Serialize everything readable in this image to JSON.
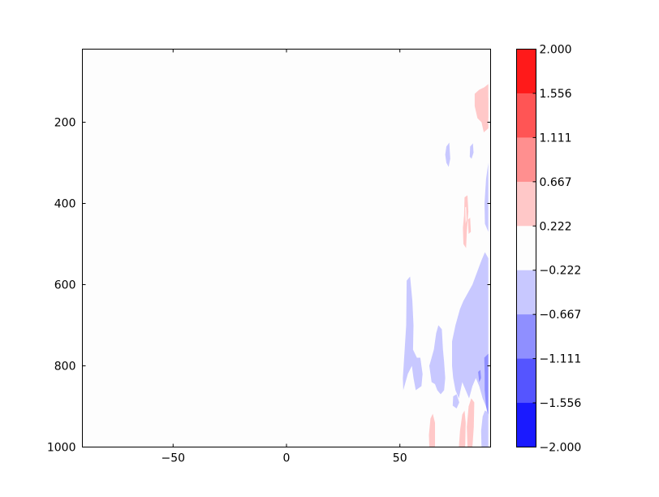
{
  "chart_data": {
    "type": "heatmap",
    "title": "",
    "xlabel": "",
    "ylabel": "",
    "xlim": [
      -90,
      90
    ],
    "ylim": [
      1000,
      20
    ],
    "y_inverted": true,
    "x_ticks": [
      {
        "value": -50,
        "label": "−50"
      },
      {
        "value": 0,
        "label": "0"
      },
      {
        "value": 50,
        "label": "50"
      }
    ],
    "y_ticks": [
      {
        "value": 200,
        "label": "200"
      },
      {
        "value": 400,
        "label": "400"
      },
      {
        "value": 600,
        "label": "600"
      },
      {
        "value": 800,
        "label": "800"
      },
      {
        "value": 1000,
        "label": "1000"
      }
    ],
    "grid": false,
    "colorbar": {
      "levels": [
        -2.0,
        -1.556,
        -1.111,
        -0.667,
        -0.222,
        0.222,
        0.667,
        1.111,
        1.556,
        2.0
      ],
      "tick_labels": [
        "2.000",
        "1.556",
        "1.111",
        "0.667",
        "0.222",
        "−0.222",
        "−0.667",
        "−1.111",
        "−1.556",
        "−2.000"
      ],
      "colors": [
        "#1a1aff",
        "#5555ff",
        "#8f8fff",
        "#c8c8ff",
        "#fdfdfd",
        "#ffc8c8",
        "#ff8f8f",
        "#ff5555",
        "#ff1a1a"
      ]
    },
    "regions": [
      {
        "level_index": 5,
        "points": [
          [
            87.2,
            114
          ],
          [
            89,
            106
          ],
          [
            89,
            215
          ],
          [
            87,
            225
          ],
          [
            86,
            200
          ],
          [
            84.2,
            190
          ],
          [
            83,
            160
          ],
          [
            83,
            130
          ],
          [
            85,
            120
          ]
        ]
      },
      {
        "level_index": 5,
        "points": [
          [
            89,
            140
          ],
          [
            89,
            190
          ],
          [
            87.2,
            170
          ],
          [
            87.5,
            150
          ]
        ]
      },
      {
        "level_index": 5,
        "points": [
          [
            78.5,
            385
          ],
          [
            79.8,
            380
          ],
          [
            80.2,
            420
          ],
          [
            79.5,
            470
          ],
          [
            79.2,
            510
          ],
          [
            78,
            500
          ],
          [
            77.8,
            460
          ],
          [
            78.3,
            430
          ]
        ]
      },
      {
        "level_index": 5,
        "points": [
          [
            80,
            440
          ],
          [
            81,
            435
          ],
          [
            81.3,
            470
          ],
          [
            80.3,
            475
          ]
        ]
      },
      {
        "level_index": 5,
        "points": [
          [
            63.5,
            930
          ],
          [
            64.5,
            918
          ],
          [
            65.5,
            940
          ],
          [
            65.5,
            1000
          ],
          [
            63,
            1000
          ],
          [
            62.8,
            970
          ]
        ]
      },
      {
        "level_index": 5,
        "points": [
          [
            77.5,
            920
          ],
          [
            78.5,
            910
          ],
          [
            79,
            940
          ],
          [
            78.8,
            1000
          ],
          [
            76,
            1000
          ],
          [
            76.5,
            960
          ]
        ]
      },
      {
        "level_index": 5,
        "points": [
          [
            80.3,
            900
          ],
          [
            81.5,
            880
          ],
          [
            82.8,
            890
          ],
          [
            82.6,
            950
          ],
          [
            82,
            1000
          ],
          [
            79.8,
            1000
          ],
          [
            79.5,
            950
          ]
        ]
      },
      {
        "level_index": 4,
        "points": [
          [
            78.8,
            410
          ],
          [
            79.2,
            408
          ],
          [
            79.4,
            440
          ],
          [
            79,
            450
          ]
        ]
      },
      {
        "level_index": 3,
        "points": [
          [
            70.5,
            260
          ],
          [
            71.8,
            250
          ],
          [
            72.2,
            290
          ],
          [
            71.5,
            310
          ],
          [
            70.5,
            300
          ],
          [
            70,
            280
          ]
        ]
      },
      {
        "level_index": 3,
        "points": [
          [
            81,
            260
          ],
          [
            82.2,
            252
          ],
          [
            82.5,
            275
          ],
          [
            81.6,
            290
          ],
          [
            80.8,
            285
          ]
        ]
      },
      {
        "level_index": 3,
        "points": [
          [
            89,
            300
          ],
          [
            89,
            470
          ],
          [
            87.5,
            450
          ],
          [
            87.3,
            400
          ],
          [
            88,
            340
          ]
        ]
      },
      {
        "level_index": 3,
        "points": [
          [
            53,
            590
          ],
          [
            54.5,
            580
          ],
          [
            55.5,
            640
          ],
          [
            56,
            700
          ],
          [
            55.8,
            760
          ],
          [
            57.5,
            780
          ],
          [
            59,
            780
          ],
          [
            60,
            820
          ],
          [
            59.5,
            850
          ],
          [
            57,
            860
          ],
          [
            56,
            830
          ],
          [
            55.3,
            800
          ],
          [
            53.5,
            820
          ],
          [
            52.5,
            840
          ],
          [
            51.5,
            860
          ],
          [
            51.3,
            830
          ],
          [
            52,
            770
          ],
          [
            52.8,
            700
          ]
        ]
      },
      {
        "level_index": 3,
        "points": [
          [
            63,
            800
          ],
          [
            64,
            780
          ],
          [
            65,
            760
          ],
          [
            66,
            720
          ],
          [
            67,
            700
          ],
          [
            68.5,
            710
          ],
          [
            69,
            760
          ],
          [
            69.5,
            790
          ],
          [
            70,
            830
          ],
          [
            69.5,
            860
          ],
          [
            68,
            870
          ],
          [
            66.5,
            860
          ],
          [
            65.5,
            845
          ],
          [
            64,
            840
          ]
        ]
      },
      {
        "level_index": 3,
        "points": [
          [
            73,
            740
          ],
          [
            74.5,
            700
          ],
          [
            76.5,
            660
          ],
          [
            78,
            640
          ],
          [
            80,
            620
          ],
          [
            82,
            600
          ],
          [
            84,
            570
          ],
          [
            86,
            540
          ],
          [
            87.5,
            520
          ],
          [
            89,
            535
          ],
          [
            89,
            930
          ],
          [
            88,
            900
          ],
          [
            86.5,
            880
          ],
          [
            85,
            850
          ],
          [
            83.5,
            830
          ],
          [
            82,
            850
          ],
          [
            80.5,
            880
          ],
          [
            79,
            860
          ],
          [
            77.5,
            840
          ],
          [
            76,
            880
          ],
          [
            74.5,
            860
          ],
          [
            73.5,
            830
          ],
          [
            73,
            800
          ]
        ]
      },
      {
        "level_index": 3,
        "points": [
          [
            73.5,
            875
          ],
          [
            75,
            870
          ],
          [
            76.2,
            890
          ],
          [
            75,
            905
          ],
          [
            73.3,
            898
          ]
        ]
      },
      {
        "level_index": 3,
        "points": [
          [
            86.5,
            925
          ],
          [
            87.5,
            910
          ],
          [
            89,
            915
          ],
          [
            89,
            1000
          ],
          [
            86,
            1000
          ],
          [
            85.8,
            960
          ]
        ]
      },
      {
        "level_index": 2,
        "points": [
          [
            87.2,
            780
          ],
          [
            89,
            770
          ],
          [
            89,
            920
          ],
          [
            88,
            900
          ],
          [
            87.4,
            860
          ],
          [
            87.4,
            820
          ]
        ]
      },
      {
        "level_index": 2,
        "points": [
          [
            84.5,
            815
          ],
          [
            85.5,
            810
          ],
          [
            85.8,
            830
          ],
          [
            85,
            840
          ]
        ]
      }
    ]
  }
}
